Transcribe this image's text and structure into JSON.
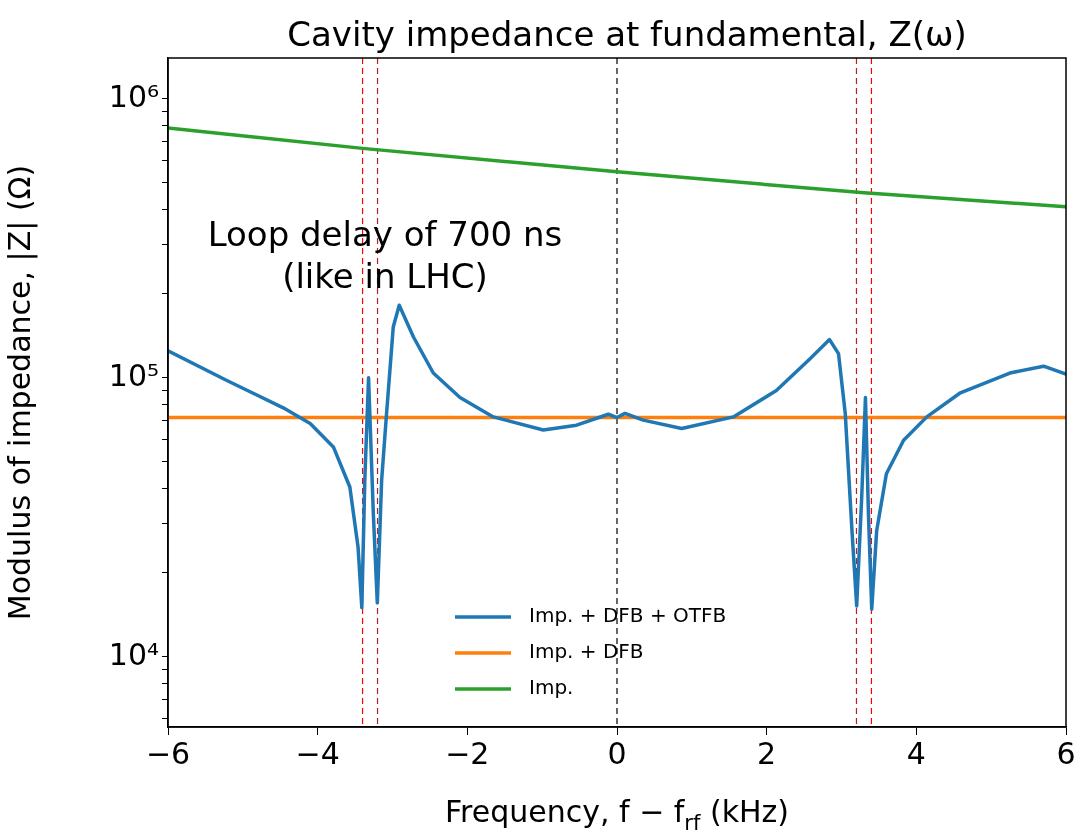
{
  "chart_data": {
    "type": "line",
    "title": "Cavity impedance at fundamental, Z(ω)",
    "xlabel": "Frequency, f − f$_{rf}$ (kHz)",
    "ylabel": "Modulus of impedance, |Z| (Ω)",
    "log": "y",
    "xlim": [
      -6,
      6
    ],
    "xticks": [
      {
        "value": -6,
        "label": "−6"
      },
      {
        "value": -4,
        "label": "−4"
      },
      {
        "value": -2,
        "label": "−2"
      },
      0,
      2,
      4,
      6
    ],
    "ylim": [
      5600,
      1400000
    ],
    "yticks": [
      {
        "value": 6000,
        "label": null
      },
      {
        "value": 7000,
        "label": null
      },
      {
        "value": 8000,
        "label": null
      },
      {
        "value": 9000,
        "label": null
      },
      {
        "value": 10000,
        "label": "10⁴"
      },
      {
        "value": 20000,
        "label": null
      },
      {
        "value": 30000,
        "label": null
      },
      {
        "value": 40000,
        "label": null
      },
      {
        "value": 50000,
        "label": null
      },
      {
        "value": 60000,
        "label": null
      },
      {
        "value": 70000,
        "label": null
      },
      {
        "value": 80000,
        "label": null
      },
      {
        "value": 90000,
        "label": null
      },
      {
        "value": 100000,
        "label": "10⁵"
      },
      {
        "value": 200000,
        "label": null
      },
      {
        "value": 300000,
        "label": null
      },
      {
        "value": 400000,
        "label": null
      },
      {
        "value": 500000,
        "label": null
      },
      {
        "value": 600000,
        "label": null
      },
      {
        "value": 700000,
        "label": null
      },
      {
        "value": 800000,
        "label": null
      },
      {
        "value": 900000,
        "label": null
      },
      {
        "value": 1000000,
        "label": "10⁶"
      }
    ],
    "grid": false,
    "legend": "bottom",
    "marker": "none",
    "line_style": "solid",
    "annotations": [
      "Loop delay of 700 ns",
      "(like in LHC)"
    ],
    "ref_lines": [
      {
        "axis": "x",
        "value": -3.4,
        "color": "#ff0000",
        "line_style": "dashed"
      },
      {
        "axis": "x",
        "value": -3.2,
        "color": "#b22222",
        "line_style": "dashed"
      },
      {
        "axis": "x",
        "value": 0,
        "color": "#000000",
        "line_style": "dashed"
      },
      {
        "axis": "x",
        "value": 3.2,
        "color": "#b22222",
        "line_style": "dashed"
      },
      {
        "axis": "x",
        "value": 3.4,
        "color": "#ff0000",
        "line_style": "dashed"
      }
    ],
    "series": [
      {
        "name": "Imp. + DFB + OTFB",
        "color": "#1f77b4",
        "x": [
          -6,
          -5.22,
          -4.46,
          -4.1,
          -3.79,
          -3.57,
          -3.46,
          -3.41,
          -3.37,
          -3.32,
          -3.256,
          -3.203,
          -3.145,
          -3.08,
          -2.99,
          -2.91,
          -2.72,
          -2.455,
          -2.098,
          -1.653,
          -0.985,
          -0.54,
          -0.116,
          0,
          0.107,
          0.35,
          0.865,
          1.555,
          2.13,
          2.58,
          2.84,
          2.96,
          3.05,
          3.14,
          3.203,
          3.27,
          3.32,
          3.36,
          3.404,
          3.47,
          3.6,
          3.83,
          4.14,
          4.58,
          5.25,
          5.7,
          6
        ],
        "values": [
          125000,
          98000,
          78000,
          68500,
          56500,
          40600,
          24700,
          15000,
          43000,
          100000,
          32500,
          15600,
          43000,
          74000,
          152000,
          182000,
          140000,
          104000,
          85000,
          72400,
          65000,
          67600,
          74000,
          72000,
          74500,
          70500,
          65800,
          72400,
          90000,
          117000,
          137000,
          122000,
          74500,
          28300,
          15200,
          37300,
          85000,
          32500,
          14800,
          28300,
          45300,
          59700,
          72400,
          88000,
          104000,
          110000,
          103000
        ]
      },
      {
        "name": "Imp. + DFB",
        "color": "#ff7f0e",
        "x": [
          -6,
          6
        ],
        "values": [
          72000,
          72000
        ]
      },
      {
        "name": "Imp.",
        "color": "#2ca02c",
        "x": [
          -6,
          -3.4,
          0,
          3.3,
          6
        ],
        "values": [
          785000,
          664000,
          547000,
          460000,
          410000
        ]
      }
    ]
  }
}
